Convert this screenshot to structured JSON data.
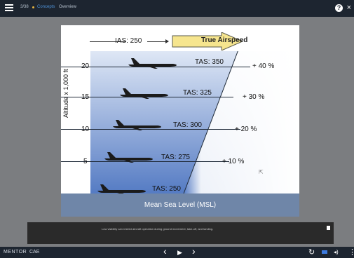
{
  "header": {
    "breadcrumbs": [
      "3/38",
      "Concepts",
      "Overview"
    ],
    "help_icon": "question-circle-icon",
    "help_symbol": "?",
    "close_icon": "close-icon",
    "close_symbol": "×"
  },
  "slide": {
    "banner": {
      "ias": "IAS: 250",
      "true_airspeed": "True Airspeed"
    },
    "y_axis_title": "Altitude x 1,000 ft",
    "rows": [
      {
        "altitude": "20",
        "tas": "TAS: 350",
        "pct": "+ 40 %"
      },
      {
        "altitude": "15",
        "tas": "TAS: 325",
        "pct": "+ 30 %"
      },
      {
        "altitude": "10",
        "tas": "TAS: 300",
        "pct": "+ 20 %"
      },
      {
        "altitude": "5",
        "tas": "TAS: 275",
        "pct": "+ 10 %"
      },
      {
        "altitude": "",
        "tas": "TAS: 250",
        "pct": ""
      }
    ],
    "ground_label": "Mean Sea Level (MSL)",
    "colors": {
      "sky_top": "#b7c9e8",
      "sky_bottom": "#3e67b6",
      "ground": "#6f86a8",
      "banner_arrow": "#f6e58e"
    }
  },
  "caption": {
    "text": "Low visibility can restrict aircraft operation during ground movement, take-off, and landing.",
    "transcript_icon": "document-icon"
  },
  "footer": {
    "logo_left": "MENTOR",
    "logo_right": "CAE",
    "prev_icon": "chevron-left-icon",
    "prev_symbol": "‹",
    "play_icon": "play-icon",
    "play_symbol": "▶",
    "next_icon": "chevron-right-icon",
    "next_symbol": "›",
    "replay_icon": "replay-icon",
    "replay_symbol": "↻",
    "captions_icon": "closed-captions-icon",
    "volume_icon": "volume-icon",
    "volume_symbol": "◂)",
    "more_icon": "more-vertical-icon",
    "more_symbol": "⋮"
  }
}
